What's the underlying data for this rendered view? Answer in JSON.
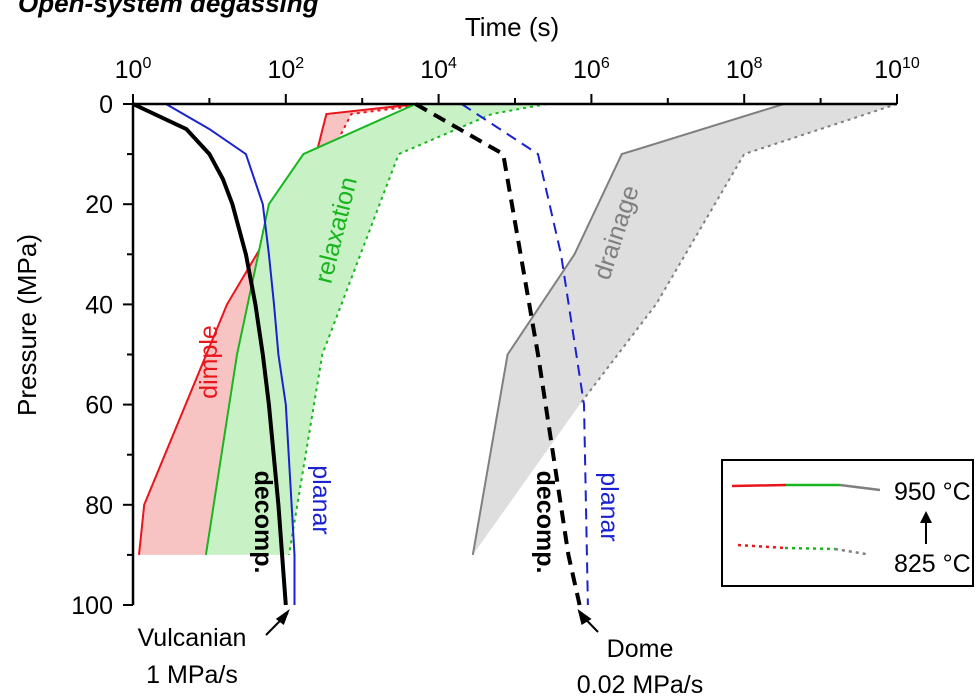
{
  "title": "Open-system degassing",
  "chart_data": {
    "type": "line",
    "xlabel": "Time (s)",
    "ylabel": "Pressure (MPa)",
    "x_scale": "log",
    "x_axis_position": "top",
    "y_inverted": true,
    "xlim": [
      1,
      10000000000
    ],
    "ylim": [
      0,
      100
    ],
    "x_ticks": [
      {
        "value": 1,
        "base": "10",
        "exp": "0"
      },
      {
        "value": 100,
        "base": "10",
        "exp": "2"
      },
      {
        "value": 10000,
        "base": "10",
        "exp": "4"
      },
      {
        "value": 1000000,
        "base": "10",
        "exp": "6"
      },
      {
        "value": 100000000,
        "base": "10",
        "exp": "8"
      },
      {
        "value": 10000000000,
        "base": "10",
        "exp": "10"
      }
    ],
    "y_ticks": [
      "0",
      "20",
      "40",
      "60",
      "80",
      "100"
    ],
    "grid": false,
    "legend": {
      "position": "right",
      "entries": [
        {
          "label": "950 °C",
          "style": "solid",
          "colors": [
            "#e8151b",
            "#19b51f",
            "#7f7f7f"
          ]
        },
        {
          "label": "825 °C",
          "style": "dotted",
          "colors": [
            "#e8151b",
            "#19b51f",
            "#7f7f7f"
          ]
        }
      ]
    },
    "bands": [
      {
        "name": "dimple",
        "color": "#e8151b",
        "fill": "#f8c4c3",
        "hot_950C": {
          "x": [
            5200,
            340,
            250,
            17,
            1.4,
            1.2
          ],
          "y": [
            0,
            2,
            10,
            40,
            80,
            90
          ]
        },
        "cold_825C": {
          "x": [
            7500,
            720,
            180,
            9
          ],
          "y": [
            0,
            2,
            20,
            90
          ]
        }
      },
      {
        "name": "relaxation",
        "color": "#19b51f",
        "fill": "#c8f2c6",
        "hot_950C": {
          "x": [
            5000,
            170,
            60,
            23,
            9
          ],
          "y": [
            0,
            10,
            20,
            50,
            90
          ]
        },
        "cold_825C": {
          "x": [
            260000,
            50000,
            3000,
            300,
            110
          ],
          "y": [
            0,
            2,
            10,
            50,
            90
          ]
        }
      },
      {
        "name": "drainage",
        "color": "#7f7f7f",
        "fill": "#dedede",
        "hot_950C": {
          "x": [
            330000000,
            2500000,
            600000,
            80000,
            28000
          ],
          "y": [
            0,
            10,
            30,
            50,
            90
          ]
        },
        "cold_825C": {
          "x": [
            10000000000,
            100000000,
            7000000,
            700000
          ],
          "y": [
            0,
            10,
            40,
            60
          ]
        }
      }
    ],
    "series": [
      {
        "label": "decomp.",
        "color": "#000000",
        "style": "solid",
        "regime": "Vulcanian",
        "x": [
          1,
          5,
          10,
          15,
          20,
          30,
          40,
          50,
          60,
          80,
          100
        ],
        "y": [
          0,
          5,
          10,
          15,
          20,
          30,
          40,
          50,
          60,
          80,
          100
        ]
      },
      {
        "label": "planar",
        "color": "#1a22cf",
        "style": "solid",
        "regime": "Vulcanian",
        "x": [
          2.7,
          10,
          30,
          50,
          60,
          70,
          80,
          100,
          130,
          130
        ],
        "y": [
          0,
          5,
          10,
          20,
          30,
          40,
          50,
          60,
          90,
          100
        ]
      },
      {
        "label": "decomp.",
        "color": "#000000",
        "style": "dashed",
        "regime": "Dome",
        "x": [
          5000,
          70000,
          200000,
          500000,
          700000
        ],
        "y": [
          0,
          10,
          50,
          90,
          100
        ]
      },
      {
        "label": "planar",
        "color": "#1a22cf",
        "style": "dashed",
        "regime": "Dome",
        "x": [
          20000,
          200000,
          400000,
          800000,
          900000
        ],
        "y": [
          0,
          10,
          30,
          60,
          100
        ]
      }
    ],
    "rate_labels": [
      {
        "regime": "Vulcanian",
        "rate": "1 MPa/s"
      },
      {
        "regime": "Dome",
        "rate": "0.02 MPa/s"
      }
    ]
  }
}
